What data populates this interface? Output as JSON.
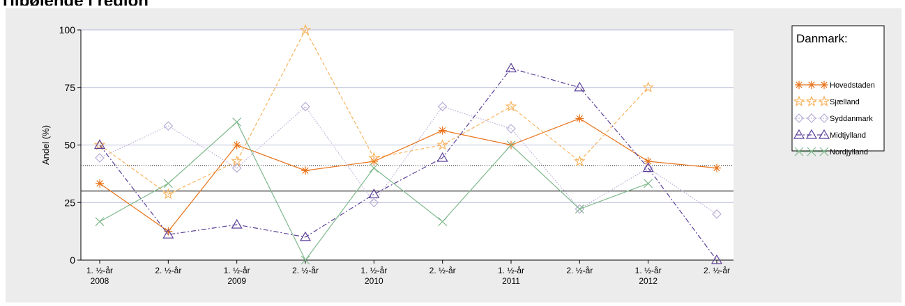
{
  "page": {
    "heading": "Tilbøjende i region"
  },
  "chart_data": {
    "type": "line",
    "ylabel": "Andel (%)",
    "ylim": [
      0,
      100
    ],
    "yticks": [
      0,
      25,
      50,
      75,
      100
    ],
    "x_tick_labels": [
      [
        "1. ½-år",
        "2008"
      ],
      [
        "2. ½-år",
        ""
      ],
      [
        "1. ½-år",
        "2009"
      ],
      [
        "2. ½-år",
        ""
      ],
      [
        "1. ½-år",
        "2010"
      ],
      [
        "2. ½-år",
        ""
      ],
      [
        "1. ½-år",
        "2011"
      ],
      [
        "2. ½-år",
        ""
      ],
      [
        "1. ½-år",
        "2012"
      ],
      [
        "2. ½-år",
        ""
      ]
    ],
    "reference_lines": [
      {
        "value": 30,
        "style": "solid",
        "color": "#000000"
      },
      {
        "value": 41,
        "style": "dotted",
        "color": "#000000"
      }
    ],
    "legend": {
      "title": "Danmark:",
      "position": "right"
    },
    "grid": true,
    "series": [
      {
        "name": "Hovedstaden",
        "color": "#e8731a",
        "marker": "asterisk",
        "dash": "solid",
        "values": [
          33.3,
          12.5,
          50,
          38.9,
          42.9,
          56.3,
          50,
          61.5,
          42.9,
          40
        ]
      },
      {
        "name": "Sjælland",
        "color": "#f7b35e",
        "marker": "star",
        "dash": "dashed",
        "values": [
          50,
          28.6,
          42.9,
          100,
          44.4,
          50,
          66.7,
          42.9,
          75,
          null
        ]
      },
      {
        "name": "Syddanmark",
        "color": "#b9aed6",
        "marker": "diamond",
        "dash": "dotted",
        "values": [
          44.4,
          58.3,
          40,
          66.7,
          25,
          66.7,
          57.1,
          22.2,
          40,
          20
        ]
      },
      {
        "name": "Midtjylland",
        "color": "#5b3f98",
        "marker": "triangle",
        "dash": "dashdot",
        "values": [
          50,
          11.1,
          15.4,
          10,
          28.6,
          44.4,
          83.3,
          75,
          40,
          0
        ]
      },
      {
        "name": "Nordjylland",
        "color": "#7fb88c",
        "marker": "x",
        "dash": "solid",
        "values": [
          16.7,
          33.3,
          60,
          0,
          40,
          16.7,
          50,
          22.2,
          33.3,
          null
        ]
      }
    ]
  }
}
